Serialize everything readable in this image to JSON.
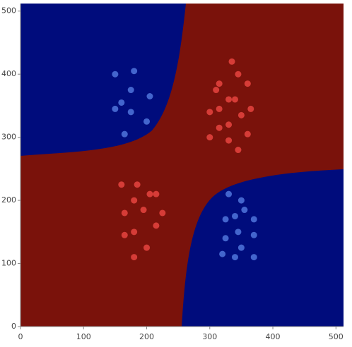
{
  "chart_data": {
    "type": "scatter",
    "xlim": [
      0,
      512
    ],
    "ylim": [
      0,
      512
    ],
    "xticks": [
      0,
      100,
      200,
      300,
      400,
      500
    ],
    "yticks": [
      0,
      100,
      200,
      300,
      400,
      500
    ],
    "series": [
      {
        "color": "#4a6fd6",
        "x": [
          150,
          180,
          175,
          205,
          160,
          150,
          175,
          200,
          165,
          330,
          350,
          355,
          340,
          325,
          370,
          345,
          325,
          370,
          350,
          320,
          340,
          370
        ],
        "values": [
          400,
          405,
          375,
          365,
          355,
          345,
          340,
          325,
          305,
          210,
          200,
          185,
          175,
          170,
          170,
          150,
          140,
          145,
          125,
          115,
          110,
          110
        ]
      },
      {
        "color": "#e0413c",
        "x": [
          335,
          345,
          315,
          360,
          310,
          330,
          340,
          300,
          315,
          365,
          350,
          330,
          315,
          360,
          300,
          330,
          345,
          160,
          185,
          205,
          215,
          180,
          195,
          165,
          225,
          215,
          180,
          165,
          200,
          180
        ],
        "values": [
          420,
          400,
          385,
          385,
          375,
          360,
          360,
          340,
          345,
          345,
          335,
          320,
          315,
          305,
          300,
          295,
          280,
          225,
          225,
          210,
          210,
          200,
          185,
          180,
          180,
          160,
          150,
          145,
          125,
          110
        ]
      }
    ]
  }
}
